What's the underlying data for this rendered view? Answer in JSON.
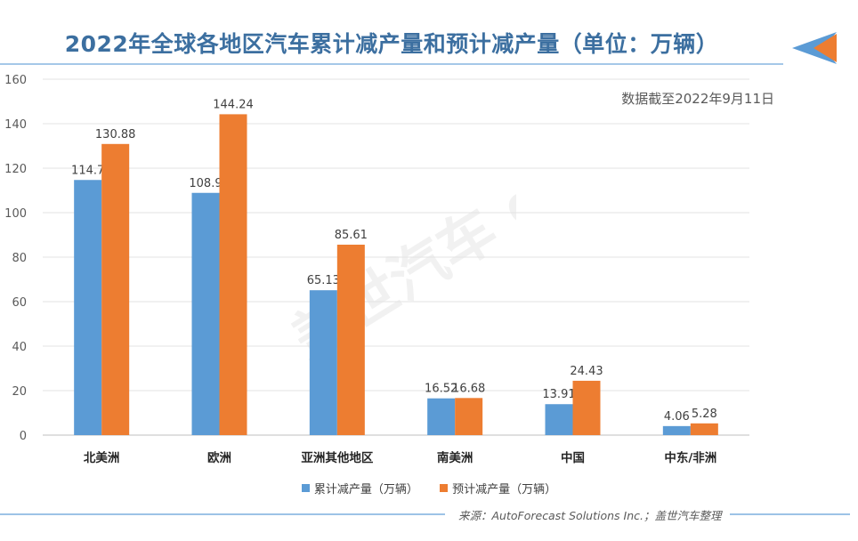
{
  "header": {
    "title": "2022年全球各地区汽车累计减产量和预计减产量（单位：万辆）",
    "note": "数据截至2022年9月11日"
  },
  "footer": {
    "source": "来源：AutoForecast Solutions Inc.；盖世汽车整理"
  },
  "watermark": {
    "text": "盖世汽车 gasgoo"
  },
  "colors": {
    "series1": "#5b9bd5",
    "series2": "#ed7d31",
    "title": "#3c6fa0"
  },
  "chart_data": {
    "type": "bar",
    "title": "2022年全球各地区汽车累计减产量和预计减产量（单位：万辆）",
    "categories": [
      "北美洲",
      "欧洲",
      "亚洲其他地区",
      "南美洲",
      "中国",
      "中东/非洲"
    ],
    "series": [
      {
        "name": "累计减产量（万辆）",
        "values": [
          114.7,
          108.9,
          65.13,
          16.52,
          13.91,
          4.06
        ],
        "value_labels": [
          "114.7",
          "108.9",
          "65.13",
          "16.52",
          "13.91",
          "4.06"
        ]
      },
      {
        "name": "预计减产量（万辆）",
        "values": [
          130.88,
          144.24,
          85.61,
          16.68,
          24.43,
          5.28
        ],
        "value_labels": [
          "130.88",
          "144.24",
          "85.61",
          "16.68",
          "24.43",
          "5.28"
        ]
      }
    ],
    "ylim": [
      0,
      160
    ],
    "yticks": [
      "0",
      "20",
      "40",
      "60",
      "80",
      "100",
      "120",
      "140",
      "160"
    ],
    "grid": true,
    "legend": "bottom"
  }
}
